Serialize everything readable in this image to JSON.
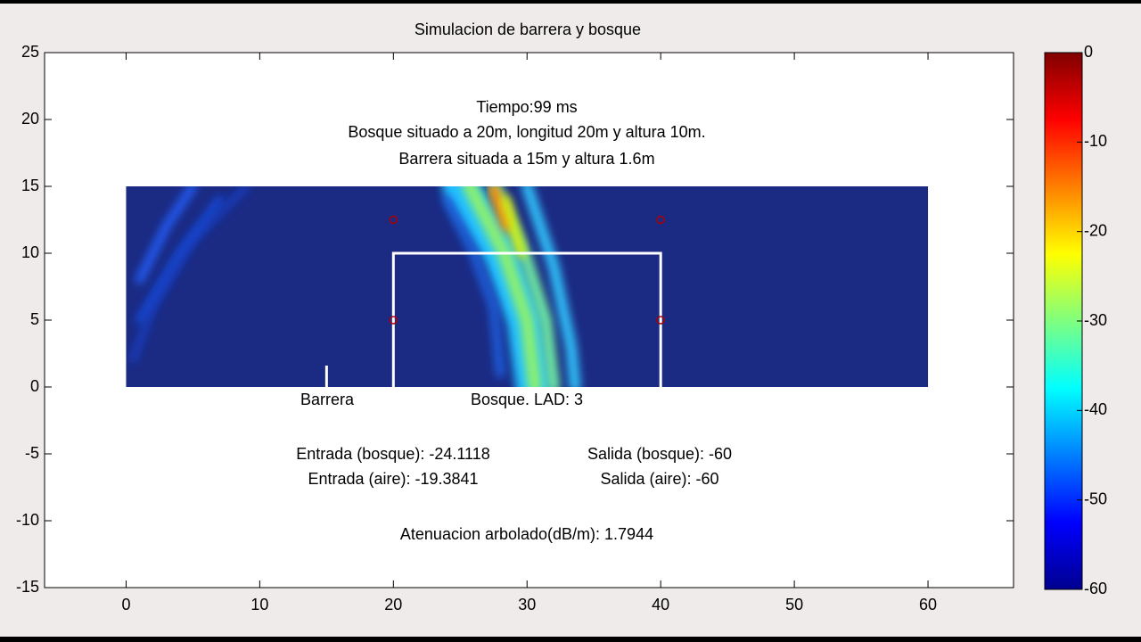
{
  "chart_data": {
    "type": "field",
    "title": "Simulacion de barrera y bosque",
    "xlim": [
      -6.1,
      66.4
    ],
    "ylim": [
      -15,
      25
    ],
    "xticks": [
      0,
      10,
      20,
      30,
      40,
      50,
      60
    ],
    "yticks": [
      -15,
      -10,
      -5,
      0,
      5,
      10,
      15,
      20,
      25
    ],
    "field": {
      "x": [
        0,
        60
      ],
      "y": [
        0,
        15
      ]
    },
    "barrier": {
      "x": 15,
      "height": 1.6
    },
    "forest": {
      "x": [
        20,
        40
      ],
      "height": 10
    },
    "sensors": {
      "x": [
        20,
        40,
        20,
        40
      ],
      "y": [
        12.5,
        12.5,
        5,
        5
      ]
    },
    "annotations": [
      "Tiempo:99 ms",
      "Bosque situado a 20m, longitud 20m y altura 10m.",
      "Barrera situada a 15m y altura 1.6m",
      "Barrera",
      "Bosque. LAD: 3",
      "Entrada (bosque): -24.1118",
      "Salida (bosque): -60",
      "Entrada (aire): -19.3841",
      "Salida (aire): -60",
      "Atenuacion arbolado(dB/m): 1.7944"
    ],
    "colorbar": {
      "clim": [
        -60,
        0
      ],
      "ticks": [
        0,
        -10,
        -20,
        -30,
        -40,
        -50,
        -60
      ]
    }
  }
}
